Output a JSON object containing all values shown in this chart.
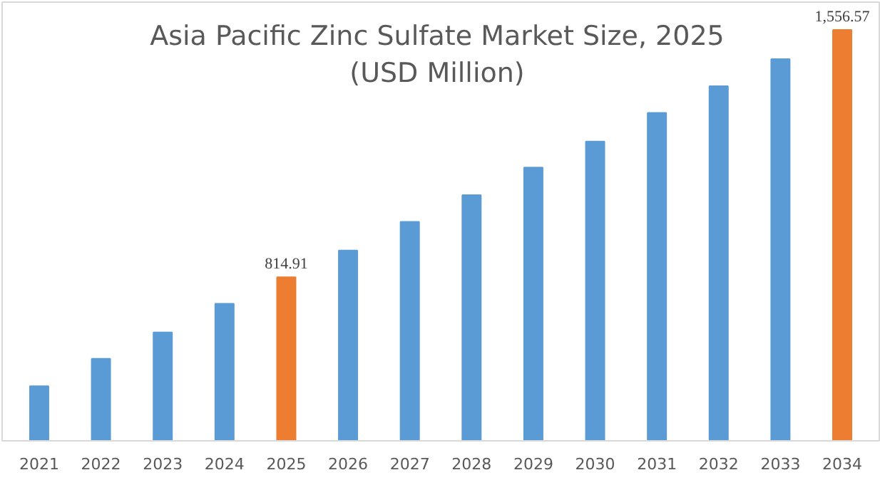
{
  "chart_data": {
    "type": "bar",
    "title": "Asia Pacific Zinc Sulfate Market Size, 2025 (USD Million)",
    "categories": [
      "2021",
      "2022",
      "2023",
      "2024",
      "2025",
      "2026",
      "2027",
      "2028",
      "2029",
      "2030",
      "2031",
      "2032",
      "2033",
      "2034"
    ],
    "values": [
      488,
      570,
      649,
      735,
      814.91,
      895,
      981,
      1061,
      1144,
      1222,
      1308,
      1388,
      1469,
      1556.57
    ],
    "colors": [
      "#5b9bd5",
      "#5b9bd5",
      "#5b9bd5",
      "#5b9bd5",
      "#ed7d31",
      "#5b9bd5",
      "#5b9bd5",
      "#5b9bd5",
      "#5b9bd5",
      "#5b9bd5",
      "#5b9bd5",
      "#5b9bd5",
      "#5b9bd5",
      "#ed7d31"
    ],
    "value_labels": [
      null,
      null,
      null,
      null,
      "814.91",
      null,
      null,
      null,
      null,
      null,
      null,
      null,
      null,
      "1,556.57"
    ],
    "ylim": [
      324,
      1640
    ],
    "grid": false
  }
}
